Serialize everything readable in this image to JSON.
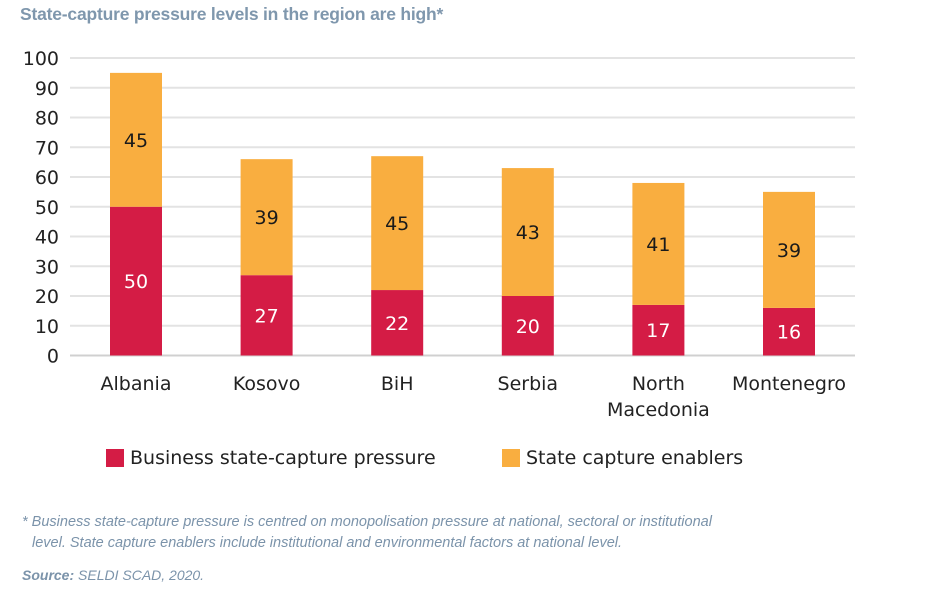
{
  "chart_data": {
    "type": "bar",
    "stacked": true,
    "title": "State-capture pressure levels in the region are high*",
    "xlabel": "",
    "ylabel": "",
    "ylim": [
      0,
      100
    ],
    "yticks": [
      0,
      10,
      20,
      30,
      40,
      50,
      60,
      70,
      80,
      90,
      100
    ],
    "grid": true,
    "legend_position": "bottom",
    "categories": [
      [
        "Albania"
      ],
      [
        "Kosovo"
      ],
      [
        "BiH"
      ],
      [
        "Serbia"
      ],
      [
        "North",
        "Macedonia"
      ],
      [
        "Montenegro"
      ]
    ],
    "series": [
      {
        "name": "Business state-capture pressure",
        "color": "#d41c45",
        "label_color": "#ffffff",
        "values": [
          50,
          27,
          22,
          20,
          17,
          16
        ]
      },
      {
        "name": "State capture enablers",
        "color": "#f9ae40",
        "label_color": "#1a1a1a",
        "values": [
          45,
          39,
          45,
          43,
          41,
          39
        ]
      }
    ]
  },
  "footnote": {
    "line1": "* Business state-capture pressure is centred on monopolisation pressure at national, sectoral or institutional",
    "line2": "level. State capture enablers include institutional and environmental factors at national level."
  },
  "source": {
    "label": "Source:",
    "text": " SELDI SCAD, 2020."
  }
}
